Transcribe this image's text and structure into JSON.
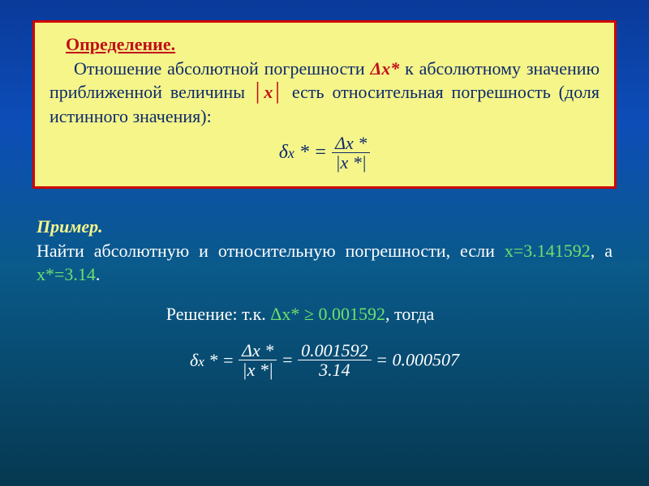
{
  "definition": {
    "title": "Определение.",
    "text_before_dx": "Отношение абсолютной погрешности ",
    "dx": "Δx*",
    "text_between": " к абсолютному значению приближенной величины ",
    "absx": "│x│",
    "text_after": " есть относительная погрешность (доля истинного значения):",
    "formula": {
      "lhs_delta": "δ",
      "lhs_x": "x",
      "lhs_star_eq": "* =",
      "num": "Δx *",
      "den": "|x *|"
    }
  },
  "example": {
    "title": "Пример.",
    "text_before_x": "Найти абсолютную и относительную погрешности, если ",
    "x_val": "x=3.141592",
    "text_mid": ", а ",
    "xstar_val": "x*=3.14",
    "period": "."
  },
  "solution": {
    "label": "Решение: т.к.  ",
    "dx_expr": "Δx* ≥ 0.001592",
    "tail": ", тогда",
    "formula": {
      "lhs_delta": "δ",
      "lhs_x": "x",
      "lhs_star_eq": "* =",
      "f1_num": "Δx *",
      "f1_den": "|x *|",
      "eq1": " = ",
      "f2_num": "0.001592",
      "f2_den": "3.14",
      "eq2": " = ",
      "result": "0.000507"
    }
  },
  "style": {
    "box_bg": "#f5f58a",
    "box_border": "#d00000",
    "title_color": "#c0101a",
    "body_color": "#0d2a6a",
    "example_title_color": "#f5f58a",
    "white": "#ffffff",
    "green": "#6ee06e"
  }
}
